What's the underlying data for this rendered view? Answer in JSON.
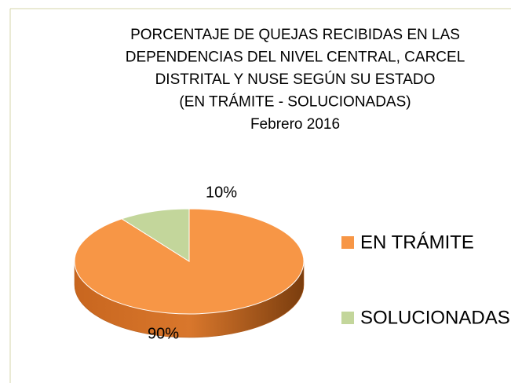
{
  "chart_data": {
    "type": "pie",
    "title": [
      "PORCENTAJE DE QUEJAS RECIBIDAS EN LAS",
      "DEPENDENCIAS DEL NIVEL CENTRAL, CARCEL",
      "DISTRITAL Y NUSE SEGÚN SU ESTADO",
      "(EN TRÁMITE - SOLUCIONADAS)",
      "Febrero  2016"
    ],
    "categories": [
      "EN TRÁMITE",
      "SOLUCIONADAS"
    ],
    "values": [
      90,
      10
    ],
    "value_labels": [
      "90%",
      "10%"
    ],
    "colors": [
      "#F79646",
      "#C3D69B"
    ],
    "legend": "right"
  }
}
